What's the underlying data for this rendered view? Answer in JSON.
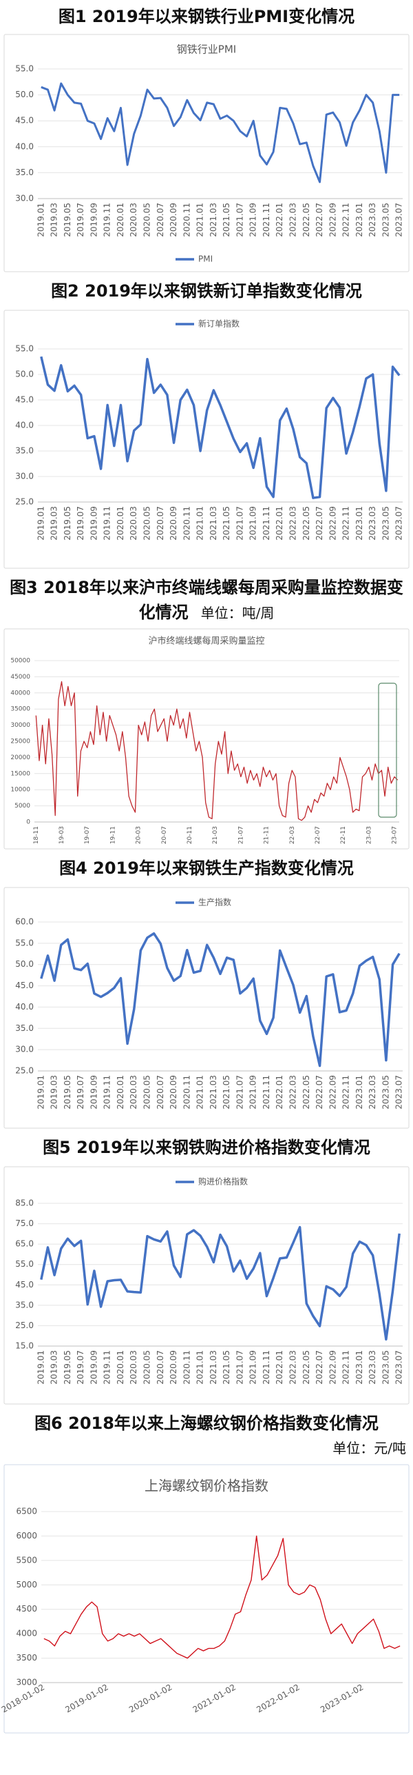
{
  "chart_data": [
    {
      "type": "line",
      "caption": "图1  2019年以来钢铁行业PMI变化情况",
      "title": "钢铁行业PMI",
      "categories": [
        "2019.01",
        null,
        "2019.03",
        null,
        "2019.05",
        null,
        "2019.07",
        null,
        "2019.09",
        null,
        "2019.11",
        null,
        "2020.01",
        null,
        "2020.03",
        null,
        "2020.05",
        null,
        "2020.07",
        null,
        "2020.09",
        null,
        "2020.11",
        null,
        "2021.01",
        null,
        "2021.03",
        null,
        "2021.05",
        null,
        "2021.07",
        null,
        "2021.09",
        null,
        "2021.11",
        null,
        "2022.01",
        null,
        "2022.03",
        null,
        "2022.05",
        null,
        "2022.07",
        null,
        "2022.09",
        null,
        "2022.11",
        null,
        "2023.01",
        null,
        "2023.03",
        null,
        "2023.05",
        null,
        "2023.07"
      ],
      "series": [
        {
          "name": "PMI",
          "color": "#4472c4",
          "values": [
            51.5,
            51,
            47,
            52.2,
            50,
            48.5,
            48.3,
            45,
            44.5,
            41.5,
            45.5,
            43,
            47.5,
            36.5,
            42.5,
            46,
            51,
            49.3,
            49.4,
            47.5,
            44,
            45.7,
            49,
            46.5,
            45.1,
            48.5,
            48.2,
            45.4,
            46,
            45,
            43,
            42,
            45,
            38.3,
            36.6,
            39,
            47.5,
            47.3,
            44.5,
            40.5,
            40.8,
            36.3,
            33.2,
            46.2,
            46.6,
            44.7,
            40.2,
            44.7,
            47,
            50,
            48.5,
            43,
            35,
            50,
            50
          ]
        }
      ],
      "ylim": [
        30,
        55
      ],
      "yticks": [
        {
          "value": 30,
          "label": "30.0"
        },
        {
          "value": 35,
          "label": "35.0"
        },
        {
          "value": 40,
          "label": "40.0"
        },
        {
          "value": 45,
          "label": "45.0"
        },
        {
          "value": 50,
          "label": "50.0"
        },
        {
          "value": 55,
          "label": "55.0"
        }
      ],
      "grid": true,
      "legend": "bottom"
    },
    {
      "type": "line",
      "caption": "图2 2019年以来钢铁新订单指数变化情况",
      "categories": [
        "2019.01",
        null,
        "2019.03",
        null,
        "2019.05",
        null,
        "2019.07",
        null,
        "2019.09",
        null,
        "2019.11",
        null,
        "2020.01",
        null,
        "2020.03",
        null,
        "2020.05",
        null,
        "2020.07",
        null,
        "2020.09",
        null,
        "2020.11",
        null,
        "2021.01",
        null,
        "2021.03",
        null,
        "2021.05",
        null,
        "2021.07",
        null,
        "2021.09",
        null,
        "2021.11",
        null,
        "2022.01",
        null,
        "2022.03",
        null,
        "2022.05",
        null,
        "2022.07",
        null,
        "2022.09",
        null,
        "2022.11",
        null,
        "2023.01",
        null,
        "2023.03",
        null,
        "2023.05",
        null,
        "2023.07"
      ],
      "series": [
        {
          "name": "新订单指数",
          "color": "#4472c4",
          "values": [
            53.5,
            48,
            46.8,
            51.8,
            46.7,
            47.8,
            46,
            37.5,
            37.9,
            31.5,
            44,
            36,
            44,
            33,
            39,
            40.2,
            53,
            46.4,
            48,
            46,
            36.6,
            45,
            47,
            44,
            35,
            43,
            46.9,
            44,
            40.7,
            37.4,
            34.8,
            36.5,
            31.7,
            37.5,
            28,
            26,
            41,
            43.3,
            39.3,
            33.8,
            32.6,
            25.8,
            26,
            43.4,
            45.4,
            43.5,
            34.5,
            38.7,
            43.7,
            49.2,
            50,
            36.5,
            27.2,
            51.5,
            49.8
          ]
        }
      ],
      "ylim": [
        25,
        55
      ],
      "yticks": [
        {
          "value": 25,
          "label": "25.0"
        },
        {
          "value": 30,
          "label": "30.0"
        },
        {
          "value": 35,
          "label": "35.0"
        },
        {
          "value": 40,
          "label": "40.0"
        },
        {
          "value": 45,
          "label": "45.0"
        },
        {
          "value": 50,
          "label": "50.0"
        },
        {
          "value": 55,
          "label": "55.0"
        }
      ],
      "grid": true,
      "legend": "top"
    },
    {
      "type": "line",
      "caption": "图3 2018年以来沪市终端线螺每周采购量监控数据变化情况",
      "unit": "单位：吨/周",
      "title": "沪市终端线螺每周采购量监控",
      "categories": [
        "18-11",
        null,
        null,
        null,
        null,
        null,
        null,
        null,
        "19-03",
        null,
        null,
        null,
        null,
        null,
        null,
        null,
        "19-07",
        null,
        null,
        null,
        null,
        null,
        null,
        null,
        "19-11",
        null,
        null,
        null,
        null,
        null,
        null,
        null,
        "20-03",
        null,
        null,
        null,
        null,
        null,
        null,
        null,
        "20-07",
        null,
        null,
        null,
        null,
        null,
        null,
        null,
        "20-11",
        null,
        null,
        null,
        null,
        null,
        null,
        null,
        "21-03",
        null,
        null,
        null,
        null,
        null,
        null,
        null,
        "21-07",
        null,
        null,
        null,
        null,
        null,
        null,
        null,
        "21-11",
        null,
        null,
        null,
        null,
        null,
        null,
        null,
        "22-03",
        null,
        null,
        null,
        null,
        null,
        null,
        null,
        "22-07",
        null,
        null,
        null,
        null,
        null,
        null,
        null,
        "22-11",
        null,
        null,
        null,
        null,
        null,
        null,
        null,
        "23-03",
        null,
        null,
        null,
        null,
        null,
        null,
        null,
        "23-07",
        null
      ],
      "series": [
        {
          "name": "沪市终端线螺每周采购量监控",
          "color": "#c0282d",
          "values": [
            33000,
            19000,
            30000,
            18000,
            32000,
            21000,
            2000,
            38000,
            43500,
            36000,
            42000,
            36000,
            40000,
            8000,
            22000,
            25000,
            23000,
            28000,
            24000,
            36000,
            27000,
            34000,
            25000,
            33000,
            30000,
            27000,
            22000,
            28000,
            20000,
            8000,
            5000,
            3000,
            30000,
            27000,
            31000,
            25000,
            33000,
            35000,
            28000,
            30000,
            32000,
            25000,
            33000,
            30000,
            35000,
            29000,
            32000,
            26000,
            34000,
            28000,
            22000,
            25000,
            20000,
            6000,
            1500,
            1000,
            18000,
            25000,
            21000,
            28000,
            15000,
            22000,
            16000,
            18000,
            14000,
            17000,
            12000,
            16000,
            13000,
            15000,
            11000,
            17000,
            14000,
            16000,
            13000,
            15000,
            5000,
            2000,
            1500,
            12000,
            16000,
            14000,
            1000,
            500,
            1500,
            5000,
            3000,
            7000,
            6000,
            9000,
            8000,
            12000,
            10000,
            14000,
            12000,
            20000,
            17000,
            14000,
            10000,
            3000,
            4000,
            3500,
            14000,
            15000,
            17000,
            13000,
            18000,
            15000,
            16000,
            8000,
            17000,
            12000,
            14000,
            13000
          ]
        }
      ],
      "ylim": [
        0,
        50000
      ],
      "yticks": [
        0,
        5000,
        10000,
        15000,
        20000,
        25000,
        30000,
        35000,
        40000,
        45000,
        50000
      ],
      "grid": true
    },
    {
      "type": "line",
      "caption": "图4 2019年以来钢铁生产指数变化情况",
      "categories": [
        "2019.01",
        null,
        "2019.03",
        null,
        "2019.05",
        null,
        "2019.07",
        null,
        "2019.09",
        null,
        "2019.11",
        null,
        "2020.01",
        null,
        "2020.03",
        null,
        "2020.05",
        null,
        "2020.07",
        null,
        "2020.09",
        null,
        "2020.11",
        null,
        "2021.01",
        null,
        "2021.03",
        null,
        "2021.05",
        null,
        "2021.07",
        null,
        "2021.09",
        null,
        "2021.11",
        null,
        "2022.01",
        null,
        "2022.03",
        null,
        "2022.05",
        null,
        "2022.07",
        null,
        "2022.09",
        null,
        "2022.11",
        null,
        "2023.01",
        null,
        "2023.03",
        null,
        "2023.05",
        null,
        "2023.07"
      ],
      "series": [
        {
          "name": "生产指数",
          "color": "#4472c4",
          "values": [
            46.7,
            52.1,
            46.2,
            54.6,
            55.9,
            49.1,
            48.7,
            50.2,
            43.2,
            42.4,
            43.3,
            44.5,
            46.8,
            31.4,
            39.5,
            53.3,
            56.3,
            57.3,
            54.9,
            49.2,
            46.2,
            47.3,
            53.4,
            48.1,
            48.5,
            54.6,
            51.6,
            47.8,
            51.6,
            51.1,
            43.2,
            44.5,
            46.7,
            36.8,
            33.7,
            37.5,
            53.3,
            49.2,
            45.2,
            38.7,
            42.6,
            33.1,
            26.2,
            47.2,
            47.7,
            38.8,
            39.2,
            43.2,
            49.7,
            50.9,
            51.8,
            46.5,
            27.5,
            50,
            52.6
          ]
        }
      ],
      "ylim": [
        25,
        60
      ],
      "yticks": [
        {
          "value": 25,
          "label": "25.0"
        },
        {
          "value": 30,
          "label": "30.0"
        },
        {
          "value": 35,
          "label": "35.0"
        },
        {
          "value": 40,
          "label": "40.0"
        },
        {
          "value": 45,
          "label": "45.0"
        },
        {
          "value": 50,
          "label": "50.0"
        },
        {
          "value": 55,
          "label": "55.0"
        },
        {
          "value": 60,
          "label": "60.0"
        }
      ],
      "grid": true,
      "legend": "top"
    },
    {
      "type": "line",
      "caption": "图5 2019年以来钢铁购进价格指数变化情况",
      "categories": [
        "2019.01",
        null,
        "2019.03",
        null,
        "2019.05",
        null,
        "2019.07",
        null,
        "2019.09",
        null,
        "2019.11",
        null,
        "2020.01",
        null,
        "2020.03",
        null,
        "2020.05",
        null,
        "2020.07",
        null,
        "2020.09",
        null,
        "2020.11",
        null,
        "2021.01",
        null,
        "2021.03",
        null,
        "2021.05",
        null,
        "2021.07",
        null,
        "2021.09",
        null,
        "2021.11",
        null,
        "2022.01",
        null,
        "2022.03",
        null,
        "2022.05",
        null,
        "2022.07",
        null,
        "2022.09",
        null,
        "2022.11",
        null,
        "2023.01",
        null,
        "2023.03",
        null,
        "2023.05",
        null,
        "2023.07"
      ],
      "series": [
        {
          "name": "购进价格指数",
          "color": "#4472c4",
          "values": [
            47.6,
            63.4,
            49.8,
            62.8,
            67.7,
            64.1,
            66.6,
            35.4,
            51.9,
            34.3,
            46.8,
            47.3,
            47.5,
            41.8,
            41.5,
            41.3,
            68.9,
            67.3,
            66.3,
            71.2,
            54.5,
            48.9,
            69.8,
            71.8,
            69.1,
            63.7,
            56.1,
            69.6,
            63.9,
            51.6,
            56.9,
            48,
            53,
            60.6,
            39.5,
            48.4,
            58,
            58.4,
            65.7,
            73.3,
            35.9,
            29.7,
            24.8,
            44.3,
            42.8,
            39.6,
            44,
            60.4,
            66.2,
            64.5,
            59.5,
            40.5,
            18.3,
            42,
            70.2
          ]
        }
      ],
      "ylim": [
        15,
        85
      ],
      "yticks": [
        {
          "value": 15,
          "label": "15.0"
        },
        {
          "value": 25,
          "label": "25.0"
        },
        {
          "value": 35,
          "label": "35.0"
        },
        {
          "value": 45,
          "label": "45.0"
        },
        {
          "value": 55,
          "label": "55.0"
        },
        {
          "value": 65,
          "label": "65.0"
        },
        {
          "value": 75,
          "label": "75.0"
        },
        {
          "value": 85,
          "label": "85.0"
        }
      ],
      "grid": true,
      "legend": "top"
    },
    {
      "type": "line",
      "caption": "图6 2018年以来上海螺纹钢价格指数变化情况",
      "unit": "单位：元/吨",
      "title": "上海螺纹钢价格指数",
      "categories": [
        "2018-01-02",
        null,
        null,
        null,
        null,
        null,
        null,
        null,
        null,
        null,
        null,
        null,
        "2019-01-02",
        null,
        null,
        null,
        null,
        null,
        null,
        null,
        null,
        null,
        null,
        null,
        "2020-01-02",
        null,
        null,
        null,
        null,
        null,
        null,
        null,
        null,
        null,
        null,
        null,
        "2021-01-02",
        null,
        null,
        null,
        null,
        null,
        null,
        null,
        null,
        null,
        null,
        null,
        "2022-01-02",
        null,
        null,
        null,
        null,
        null,
        null,
        null,
        null,
        null,
        null,
        null,
        "2023-01-02",
        null,
        null,
        null,
        null,
        null,
        null,
        null
      ],
      "series": [
        {
          "name": "上海螺纹钢价格指数",
          "color": "#d0101a",
          "values": [
            3900,
            3850,
            3750,
            3950,
            4050,
            4000,
            4200,
            4400,
            4550,
            4650,
            4550,
            4000,
            3850,
            3900,
            4000,
            3950,
            4000,
            3950,
            4000,
            3900,
            3800,
            3850,
            3900,
            3800,
            3700,
            3600,
            3550,
            3500,
            3600,
            3700,
            3650,
            3700,
            3700,
            3750,
            3850,
            4100,
            4400,
            4450,
            4800,
            5100,
            6000,
            5100,
            5200,
            5400,
            5600,
            5950,
            5000,
            4850,
            4800,
            4850,
            5000,
            4950,
            4700,
            4300,
            4000,
            4100,
            4200,
            4000,
            3800,
            4000,
            4100,
            4200,
            4300,
            4050,
            3700,
            3750,
            3700,
            3750
          ]
        }
      ],
      "ylim": [
        3000,
        6500
      ],
      "yticks": [
        3000,
        3500,
        4000,
        4500,
        5000,
        5500,
        6000,
        6500
      ],
      "grid": true
    }
  ]
}
